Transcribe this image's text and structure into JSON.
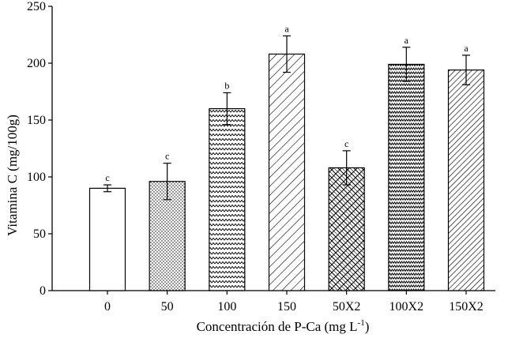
{
  "chart_data": {
    "type": "bar",
    "title": "",
    "xlabel": "Concentración de P-Ca (mg L",
    "xlabel_superscript": "-1",
    "xlabel_suffix": ")",
    "ylabel": "Vitamina C (mg/100g)",
    "ylim": [
      0,
      250
    ],
    "yticks": [
      0,
      50,
      100,
      150,
      200,
      250
    ],
    "categories": [
      "0",
      "50",
      "100",
      "150",
      "50X2",
      "100X2",
      "150X2"
    ],
    "values": [
      90,
      96,
      160,
      208,
      108,
      199,
      194
    ],
    "errors": [
      3,
      16,
      14,
      16,
      15,
      15,
      13
    ],
    "letters": [
      "c",
      "c",
      "b",
      "a",
      "c",
      "a",
      "a"
    ],
    "patterns": [
      "none",
      "dots",
      "zigzag",
      "diag-down",
      "brick",
      "zigzag-dense",
      "diag-down-dense"
    ]
  }
}
